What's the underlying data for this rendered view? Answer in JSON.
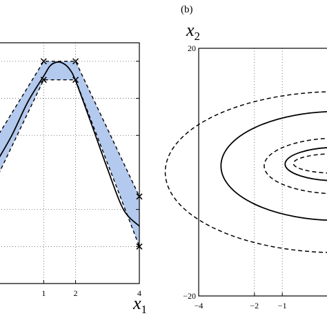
{
  "chart_data": [
    {
      "type": "line",
      "panel_label": "",
      "xlabel": "x",
      "xlabel_sub": "1",
      "ylabel": "",
      "xlim": [
        -0.5,
        4
      ],
      "ylim": [
        -0.2,
        1.1
      ],
      "x_ticks": [
        1,
        2,
        4
      ],
      "x_tick_labels": [
        "1",
        "2",
        "4"
      ],
      "y_ticks": [
        0,
        0.2,
        0.6,
        0.8,
        1.0
      ],
      "grid": true,
      "series": [
        {
          "role": "mean",
          "style": "solid",
          "color": "#000000",
          "x": [
            -0.5,
            0,
            0.5,
            1.0,
            1.2,
            1.4,
            1.6,
            1.8,
            2.0,
            2.5,
            3.0,
            3.5,
            4.0
          ],
          "y": [
            0.45,
            0.6,
            0.78,
            0.92,
            0.975,
            0.995,
            0.99,
            0.96,
            0.895,
            0.66,
            0.42,
            0.2,
            0.11
          ]
        },
        {
          "role": "upper-bound",
          "style": "dashed",
          "color": "#000000",
          "x": [
            -0.5,
            1,
            2,
            4
          ],
          "y": [
            0.58,
            1.0,
            1.0,
            0.27
          ]
        },
        {
          "role": "lower-bound",
          "style": "dashed",
          "color": "#000000",
          "x": [
            -0.5,
            1,
            2,
            4
          ],
          "y": [
            0.36,
            0.9,
            0.9,
            0.0
          ]
        }
      ],
      "band_color": "#b3c9ee",
      "markers": {
        "symbol": "x",
        "x": [
          1,
          1,
          2,
          2,
          4,
          4
        ],
        "y": [
          1.0,
          0.9,
          1.0,
          0.9,
          0.27,
          0.0
        ]
      }
    },
    {
      "type": "contour",
      "panel_label": "(b)",
      "xlabel": "",
      "ylabel": "x",
      "ylabel_sub": "2",
      "xlim": [
        -4,
        1
      ],
      "ylim": [
        -20,
        20
      ],
      "x_ticks": [
        -4,
        -2,
        -1
      ],
      "x_tick_labels": [
        "−4",
        "−2",
        "−1"
      ],
      "y_ticks": [
        -20,
        20
      ],
      "y_tick_labels": [
        "−20",
        "20"
      ],
      "grid": true,
      "contours": [
        {
          "style": "dashed",
          "cx": 1.0,
          "cy": 0.0,
          "rx": 6.2,
          "ry": 13.0
        },
        {
          "style": "solid",
          "cx": 1.0,
          "cy": 1.0,
          "rx": 4.2,
          "ry": 8.8
        },
        {
          "style": "dashed",
          "cx": 1.0,
          "cy": 1.0,
          "rx": 2.65,
          "ry": 4.5
        },
        {
          "style": "solid",
          "cx": 1.0,
          "cy": 1.3,
          "rx": 1.9,
          "ry": 2.7
        },
        {
          "style": "dashed",
          "cx": 1.0,
          "cy": 1.4,
          "rx": 1.6,
          "ry": 1.6
        }
      ]
    }
  ]
}
